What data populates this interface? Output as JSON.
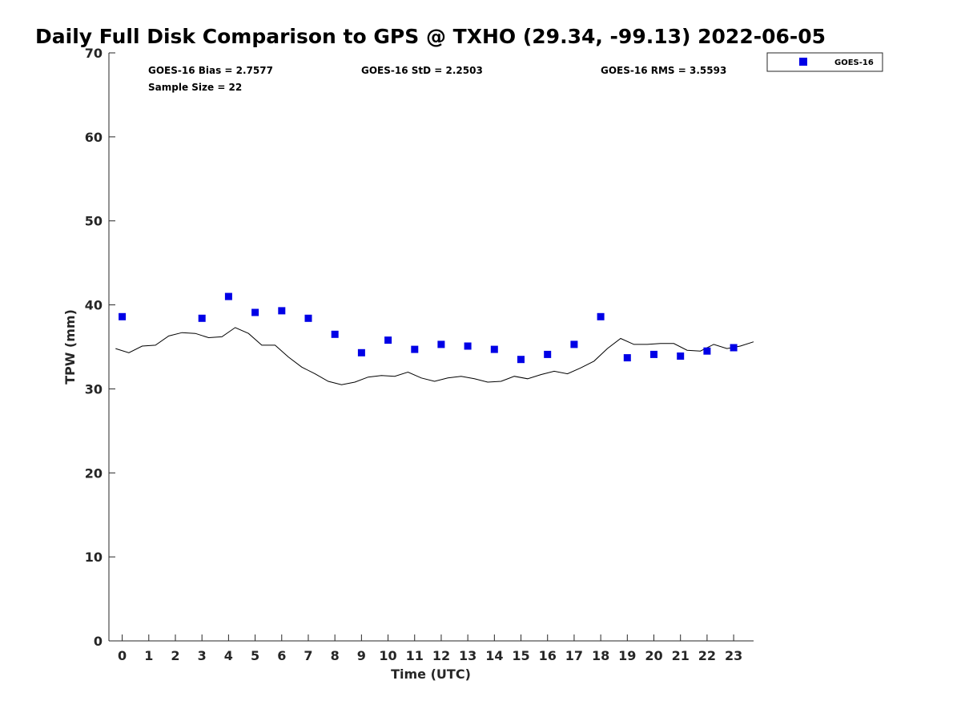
{
  "chart_data": {
    "type": "scatter",
    "title": "Daily Full Disk Comparison to GPS @ TXHO (29.34, -99.13) 2022-06-05",
    "xlabel": "Time (UTC)",
    "ylabel": "TPW (mm)",
    "xlim": [
      -0.5,
      23.75
    ],
    "ylim": [
      0,
      70
    ],
    "x_ticks": [
      0,
      1,
      2,
      3,
      4,
      5,
      6,
      7,
      8,
      9,
      10,
      11,
      12,
      13,
      14,
      15,
      16,
      17,
      18,
      19,
      20,
      21,
      22,
      23
    ],
    "y_ticks": [
      0,
      10,
      20,
      30,
      40,
      50,
      60,
      70
    ],
    "grid": false,
    "legend_position": "top-right",
    "stats": {
      "bias": "GOES-16 Bias = 2.7577",
      "std": "GOES-16 StD = 2.2503",
      "rms": "GOES-16 RMS = 3.5593",
      "sample": "Sample Size = 22"
    },
    "series": [
      {
        "name": "GOES-16",
        "kind": "scatter",
        "marker": "square",
        "color": "#0000e6",
        "x": [
          0,
          3,
          4,
          5,
          6,
          7,
          8,
          9,
          10,
          11,
          12,
          13,
          14,
          15,
          16,
          17,
          18,
          19,
          20,
          21,
          22,
          23
        ],
        "y": [
          38.6,
          38.4,
          41.0,
          39.1,
          39.3,
          38.4,
          36.5,
          34.3,
          35.8,
          34.7,
          35.3,
          35.1,
          34.7,
          33.5,
          34.1,
          35.3,
          38.6,
          33.7,
          34.1,
          33.9,
          34.5,
          34.9
        ]
      },
      {
        "kind": "line",
        "color": "#000000",
        "x": [
          -0.25,
          0.25,
          0.75,
          1.25,
          1.75,
          2.25,
          2.75,
          3.25,
          3.75,
          4.25,
          4.75,
          5.25,
          5.75,
          6.25,
          6.75,
          7.25,
          7.75,
          8.25,
          8.75,
          9.25,
          9.75,
          10.25,
          10.75,
          11.25,
          11.75,
          12.25,
          12.75,
          13.25,
          13.75,
          14.25,
          14.75,
          15.25,
          15.75,
          16.25,
          16.75,
          17.25,
          17.75,
          18.25,
          18.75,
          19.25,
          19.75,
          20.25,
          20.75,
          21.25,
          21.75,
          22.25,
          22.75,
          23.25,
          23.75
        ],
        "y": [
          34.8,
          34.3,
          35.1,
          35.2,
          36.3,
          36.7,
          36.6,
          36.1,
          36.2,
          37.3,
          36.6,
          35.2,
          35.2,
          33.8,
          32.6,
          31.8,
          30.9,
          30.5,
          30.8,
          31.4,
          31.6,
          31.5,
          32.0,
          31.3,
          30.9,
          31.3,
          31.5,
          31.2,
          30.8,
          30.9,
          31.5,
          31.2,
          31.7,
          32.1,
          31.8,
          32.5,
          33.3,
          34.8,
          36.0,
          35.3,
          35.3,
          35.4,
          35.4,
          34.6,
          34.5,
          35.3,
          34.8,
          35.1,
          35.6
        ]
      }
    ]
  }
}
